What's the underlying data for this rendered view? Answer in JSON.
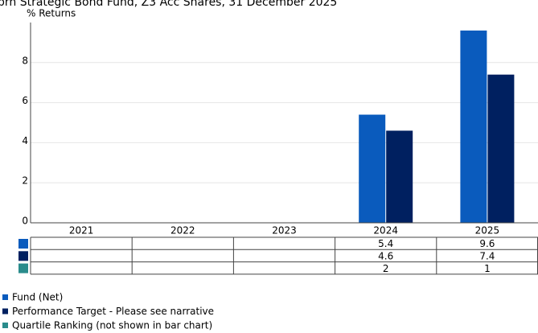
{
  "chart_data": {
    "type": "bar",
    "title": "brn Strategic Bond Fund, Z3 Acc Shares, 31 December 2025",
    "y_label": "% Returns",
    "categories": [
      "2021",
      "2022",
      "2023",
      "2024",
      "2025"
    ],
    "series": [
      {
        "name": "Fund (Net)",
        "color": "#0a5bbd",
        "values": [
          null,
          null,
          null,
          5.4,
          9.6
        ]
      },
      {
        "name": "Performance Target - Please see narrative",
        "color": "#002060",
        "values": [
          null,
          null,
          null,
          4.6,
          7.4
        ]
      }
    ],
    "quartile_ranking": {
      "name": "Quartile Ranking (not shown in bar chart)",
      "color": "#2a8c8c",
      "values": [
        null,
        null,
        null,
        2,
        1
      ]
    },
    "ylim": [
      0,
      10
    ],
    "yticks": [
      0,
      2,
      4,
      6,
      8
    ],
    "grid": true
  }
}
